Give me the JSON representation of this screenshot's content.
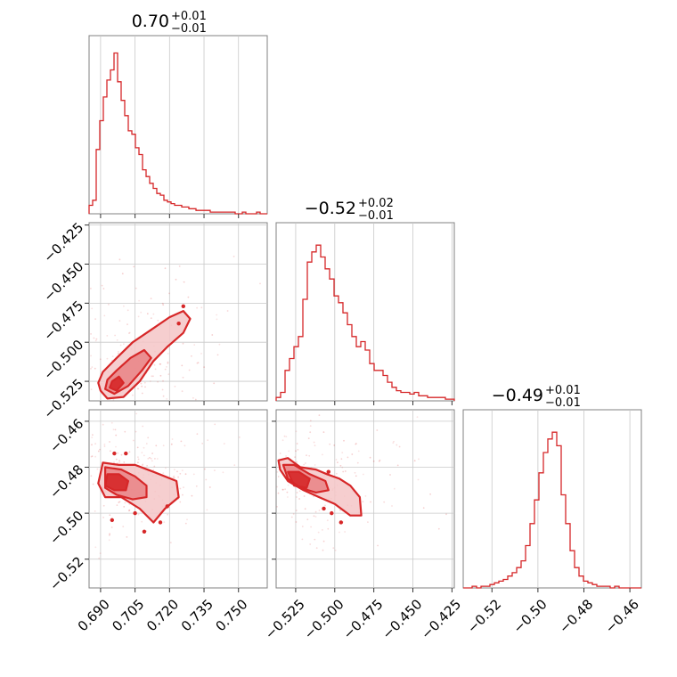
{
  "chart_data": {
    "type": "corner",
    "color": "#d62728",
    "fill_light": "#f4c6c7",
    "fill_mid": "#e98385",
    "parameters": [
      {
        "title": {
          "median": "0.70",
          "plus": "+0.01",
          "minus": "−0.01"
        },
        "range": [
          0.685,
          0.7625
        ],
        "ticks": [
          {
            "value": 0.69,
            "label": "0.690"
          },
          {
            "value": 0.705,
            "label": "0.705"
          },
          {
            "value": 0.72,
            "label": "0.720"
          },
          {
            "value": 0.735,
            "label": "0.735"
          },
          {
            "value": 0.75,
            "label": "0.750"
          }
        ],
        "histogram": [
          0.05,
          0.08,
          0.38,
          0.55,
          0.69,
          0.79,
          0.85,
          0.95,
          0.78,
          0.67,
          0.58,
          0.49,
          0.47,
          0.39,
          0.35,
          0.26,
          0.22,
          0.18,
          0.15,
          0.12,
          0.11,
          0.08,
          0.07,
          0.06,
          0.05,
          0.05,
          0.04,
          0.04,
          0.03,
          0.03,
          0.02,
          0.02,
          0.02,
          0.02,
          0.01,
          0.01,
          0.01,
          0.01,
          0.01,
          0.01,
          0.01,
          0.0,
          0.0,
          0.01,
          0.0,
          0.0,
          0.0,
          0.01,
          0.0,
          0.0
        ]
      },
      {
        "title": {
          "median": "−0.52",
          "plus": "+0.02",
          "minus": "−0.01"
        },
        "range": [
          -0.5375,
          -0.4235
        ],
        "ticks": [
          {
            "value": -0.525,
            "label": "−0.525"
          },
          {
            "value": -0.5,
            "label": "−0.500"
          },
          {
            "value": -0.475,
            "label": "−0.475"
          },
          {
            "value": -0.45,
            "label": "−0.450"
          },
          {
            "value": -0.425,
            "label": "−0.425"
          }
        ],
        "histogram": [
          0.02,
          0.05,
          0.18,
          0.25,
          0.32,
          0.38,
          0.6,
          0.82,
          0.88,
          0.92,
          0.85,
          0.78,
          0.72,
          0.62,
          0.58,
          0.52,
          0.45,
          0.38,
          0.32,
          0.35,
          0.3,
          0.22,
          0.18,
          0.18,
          0.15,
          0.11,
          0.08,
          0.06,
          0.05,
          0.05,
          0.04,
          0.05,
          0.03,
          0.03,
          0.02,
          0.02,
          0.02,
          0.02,
          0.01,
          0.01
        ]
      },
      {
        "title": {
          "median": "−0.49",
          "plus": "+0.01",
          "minus": "−0.01"
        },
        "range": [
          -0.5325,
          -0.455
        ],
        "ticks": [
          {
            "value": -0.52,
            "label": "−0.52"
          },
          {
            "value": -0.5,
            "label": "−0.50"
          },
          {
            "value": -0.48,
            "label": "−0.48"
          },
          {
            "value": -0.46,
            "label": "−0.46"
          }
        ],
        "histogram": [
          0.0,
          0.0,
          0.01,
          0.0,
          0.01,
          0.01,
          0.02,
          0.03,
          0.04,
          0.05,
          0.07,
          0.09,
          0.12,
          0.16,
          0.25,
          0.38,
          0.52,
          0.68,
          0.8,
          0.88,
          0.92,
          0.84,
          0.55,
          0.38,
          0.22,
          0.12,
          0.07,
          0.04,
          0.03,
          0.02,
          0.01,
          0.01,
          0.01,
          0.0,
          0.01,
          0.0,
          0.0,
          0.0,
          0.0,
          0.0
        ]
      }
    ],
    "pairs": [
      {
        "x_param": 0,
        "y_param": 1,
        "center": [
          0.696,
          -0.528
        ],
        "contours": [
          [
            [
              0.69,
              -0.531
            ],
            [
              0.693,
              -0.536
            ],
            [
              0.7,
              -0.535
            ],
            [
              0.707,
              -0.525
            ],
            [
              0.713,
              -0.512
            ],
            [
              0.719,
              -0.503
            ],
            [
              0.726,
              -0.494
            ],
            [
              0.729,
              -0.485
            ],
            [
              0.726,
              -0.48
            ],
            [
              0.72,
              -0.484
            ],
            [
              0.712,
              -0.492
            ],
            [
              0.704,
              -0.5
            ],
            [
              0.697,
              -0.51
            ],
            [
              0.691,
              -0.519
            ],
            [
              0.689,
              -0.526
            ]
          ],
          [
            [
              0.692,
              -0.53
            ],
            [
              0.696,
              -0.533
            ],
            [
              0.702,
              -0.528
            ],
            [
              0.708,
              -0.518
            ],
            [
              0.712,
              -0.51
            ],
            [
              0.709,
              -0.505
            ],
            [
              0.703,
              -0.51
            ],
            [
              0.697,
              -0.518
            ],
            [
              0.693,
              -0.524
            ]
          ],
          [
            [
              0.694,
              -0.529
            ],
            [
              0.697,
              -0.531
            ],
            [
              0.7,
              -0.526
            ],
            [
              0.698,
              -0.522
            ],
            [
              0.695,
              -0.525
            ]
          ]
        ],
        "outliers": [
          [
            0.726,
            -0.477
          ],
          [
            0.724,
            -0.488
          ]
        ]
      },
      {
        "x_param": 0,
        "y_param": 2,
        "center": [
          0.697,
          -0.486
        ],
        "contours": [
          [
            [
              0.691,
              -0.478
            ],
            [
              0.698,
              -0.479
            ],
            [
              0.705,
              -0.479
            ],
            [
              0.713,
              -0.482
            ],
            [
              0.723,
              -0.486
            ],
            [
              0.724,
              -0.493
            ],
            [
              0.718,
              -0.498
            ],
            [
              0.713,
              -0.504
            ],
            [
              0.707,
              -0.498
            ],
            [
              0.699,
              -0.493
            ],
            [
              0.692,
              -0.493
            ],
            [
              0.689,
              -0.487
            ]
          ],
          [
            [
              0.692,
              -0.48
            ],
            [
              0.699,
              -0.481
            ],
            [
              0.705,
              -0.484
            ],
            [
              0.71,
              -0.488
            ],
            [
              0.71,
              -0.493
            ],
            [
              0.704,
              -0.494
            ],
            [
              0.697,
              -0.492
            ],
            [
              0.692,
              -0.489
            ]
          ],
          [
            [
              0.693,
              -0.483
            ],
            [
              0.698,
              -0.483
            ],
            [
              0.702,
              -0.486
            ],
            [
              0.701,
              -0.49
            ],
            [
              0.696,
              -0.49
            ],
            [
              0.692,
              -0.488
            ]
          ]
        ],
        "outliers": [
          [
            0.696,
            -0.474
          ],
          [
            0.701,
            -0.474
          ],
          [
            0.695,
            -0.503
          ],
          [
            0.705,
            -0.5
          ],
          [
            0.719,
            -0.497
          ],
          [
            0.716,
            -0.504
          ],
          [
            0.709,
            -0.508
          ]
        ]
      },
      {
        "x_param": 1,
        "y_param": 2,
        "center": [
          -0.524,
          -0.486
        ],
        "contours": [
          [
            [
              -0.536,
              -0.477
            ],
            [
              -0.53,
              -0.476
            ],
            [
              -0.522,
              -0.48
            ],
            [
              -0.512,
              -0.481
            ],
            [
              -0.505,
              -0.483
            ],
            [
              -0.497,
              -0.485
            ],
            [
              -0.49,
              -0.488
            ],
            [
              -0.484,
              -0.493
            ],
            [
              -0.483,
              -0.501
            ],
            [
              -0.49,
              -0.501
            ],
            [
              -0.5,
              -0.496
            ],
            [
              -0.51,
              -0.493
            ],
            [
              -0.52,
              -0.49
            ],
            [
              -0.53,
              -0.486
            ],
            [
              -0.535,
              -0.481
            ]
          ],
          [
            [
              -0.533,
              -0.479
            ],
            [
              -0.526,
              -0.479
            ],
            [
              -0.516,
              -0.483
            ],
            [
              -0.506,
              -0.486
            ],
            [
              -0.504,
              -0.49
            ],
            [
              -0.512,
              -0.491
            ],
            [
              -0.522,
              -0.489
            ],
            [
              -0.53,
              -0.485
            ]
          ],
          [
            [
              -0.53,
              -0.482
            ],
            [
              -0.523,
              -0.482
            ],
            [
              -0.516,
              -0.485
            ],
            [
              -0.518,
              -0.489
            ],
            [
              -0.526,
              -0.488
            ]
          ]
        ],
        "outliers": [
          [
            -0.504,
            -0.482
          ],
          [
            -0.507,
            -0.498
          ],
          [
            -0.496,
            -0.504
          ],
          [
            -0.502,
            -0.5
          ]
        ]
      }
    ]
  }
}
